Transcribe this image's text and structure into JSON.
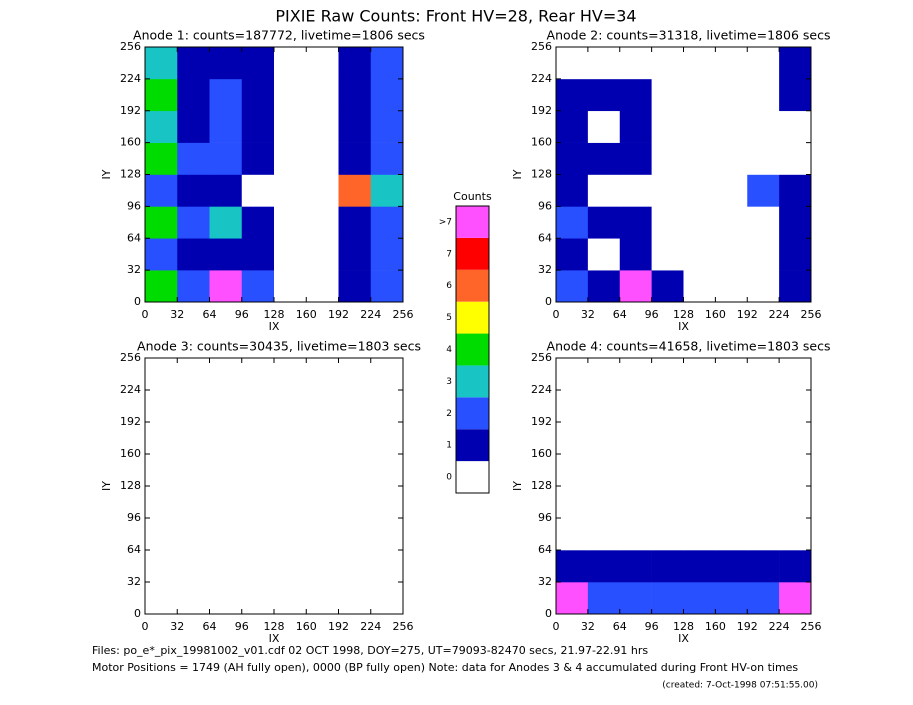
{
  "header": {
    "title": "PIXIE Raw Counts:  Front HV=28, Rear HV=34"
  },
  "footer": {
    "files": "Files: po_e*_pix_19981002_v01.cdf    02 OCT 1998, DOY=275, UT=79093-82470 secs, 21.97-22.91 hrs",
    "motor": "Motor Positions = 1749 (AH fully open), 0000 (BP fully open)    Note: data for Anodes 3 & 4 accumulated during Front HV-on times",
    "created": "(created:  7-Oct-1998 07:51:55.00)"
  },
  "colorbar": {
    "title": "Counts",
    "levels": [
      0,
      1,
      2,
      3,
      4,
      5,
      6,
      7,
      {
        "value": 8,
        "label": ">7"
      }
    ],
    "colors": [
      "#ffffff",
      "#0000b0",
      "#2850ff",
      "#18c4c4",
      "#00dc00",
      "#ffff00",
      "#ff6428",
      "#ff0000",
      "#ff50ff"
    ]
  },
  "chart_data": [
    {
      "type": "heatmap",
      "title": "Anode 1: counts=187772, livetime=1806 secs",
      "xlabel": "IX",
      "ylabel": "IY",
      "xlim": [
        0,
        256
      ],
      "ylim": [
        0,
        256
      ],
      "xticks": [
        0,
        32,
        64,
        96,
        128,
        160,
        192,
        224,
        256
      ],
      "yticks": [
        0,
        32,
        64,
        96,
        128,
        160,
        192,
        224,
        256
      ],
      "z": [
        [
          4,
          2,
          8,
          2,
          0,
          0,
          1,
          2
        ],
        [
          2,
          1,
          1,
          1,
          0,
          0,
          1,
          2
        ],
        [
          4,
          2,
          3,
          1,
          0,
          0,
          1,
          2
        ],
        [
          2,
          1,
          1,
          0,
          0,
          0,
          6,
          3
        ],
        [
          4,
          2,
          2,
          1,
          0,
          0,
          1,
          2
        ],
        [
          3,
          1,
          2,
          1,
          0,
          0,
          1,
          2
        ],
        [
          4,
          1,
          2,
          1,
          0,
          0,
          1,
          2
        ],
        [
          3,
          1,
          1,
          1,
          0,
          0,
          1,
          2
        ]
      ]
    },
    {
      "type": "heatmap",
      "title": "Anode 2: counts=31318, livetime=1806 secs",
      "xlabel": "IX",
      "ylabel": "IY",
      "xlim": [
        0,
        256
      ],
      "ylim": [
        0,
        256
      ],
      "xticks": [
        0,
        32,
        64,
        96,
        128,
        160,
        192,
        224,
        256
      ],
      "yticks": [
        0,
        32,
        64,
        96,
        128,
        160,
        192,
        224,
        256
      ],
      "z": [
        [
          2,
          1,
          8,
          1,
          0,
          0,
          0,
          1
        ],
        [
          1,
          0,
          1,
          0,
          0,
          0,
          0,
          1
        ],
        [
          2,
          1,
          1,
          0,
          0,
          0,
          0,
          1
        ],
        [
          1,
          0,
          0,
          0,
          0,
          0,
          2,
          1
        ],
        [
          1,
          1,
          1,
          0,
          0,
          0,
          0,
          0
        ],
        [
          1,
          0,
          1,
          0,
          0,
          0,
          0,
          0
        ],
        [
          1,
          1,
          1,
          0,
          0,
          0,
          0,
          1
        ],
        [
          0,
          0,
          0,
          0,
          0,
          0,
          0,
          1
        ]
      ]
    },
    {
      "type": "heatmap",
      "title": "Anode 3: counts=30435, livetime=1803 secs",
      "xlabel": "IX",
      "ylabel": "IY",
      "xlim": [
        0,
        256
      ],
      "ylim": [
        0,
        256
      ],
      "xticks": [
        0,
        32,
        64,
        96,
        128,
        160,
        192,
        224,
        256
      ],
      "yticks": [
        0,
        32,
        64,
        96,
        128,
        160,
        192,
        224,
        256
      ],
      "z": [
        [
          0,
          0,
          0,
          0,
          0,
          0,
          0,
          0
        ],
        [
          0,
          0,
          0,
          0,
          0,
          0,
          0,
          0
        ],
        [
          0,
          0,
          0,
          0,
          0,
          0,
          0,
          0
        ],
        [
          0,
          0,
          0,
          0,
          0,
          0,
          0,
          0
        ],
        [
          0,
          0,
          0,
          0,
          0,
          0,
          0,
          0
        ],
        [
          0,
          0,
          0,
          0,
          0,
          0,
          0,
          0
        ],
        [
          0,
          0,
          0,
          0,
          0,
          0,
          0,
          0
        ],
        [
          0,
          0,
          0,
          0,
          0,
          0,
          0,
          0
        ]
      ]
    },
    {
      "type": "heatmap",
      "title": "Anode 4: counts=41658, livetime=1803 secs",
      "xlabel": "IX",
      "ylabel": "IY",
      "xlim": [
        0,
        256
      ],
      "ylim": [
        0,
        256
      ],
      "xticks": [
        0,
        32,
        64,
        96,
        128,
        160,
        192,
        224,
        256
      ],
      "yticks": [
        0,
        32,
        64,
        96,
        128,
        160,
        192,
        224,
        256
      ],
      "z": [
        [
          8,
          2,
          2,
          2,
          2,
          2,
          2,
          8
        ],
        [
          1,
          1,
          1,
          1,
          1,
          1,
          1,
          1
        ],
        [
          0,
          0,
          0,
          0,
          0,
          0,
          0,
          0
        ],
        [
          0,
          0,
          0,
          0,
          0,
          0,
          0,
          0
        ],
        [
          0,
          0,
          0,
          0,
          0,
          0,
          0,
          0
        ],
        [
          0,
          0,
          0,
          0,
          0,
          0,
          0,
          0
        ],
        [
          0,
          0,
          0,
          0,
          0,
          0,
          0,
          0
        ],
        [
          0,
          0,
          0,
          0,
          0,
          0,
          0,
          0
        ]
      ]
    }
  ]
}
